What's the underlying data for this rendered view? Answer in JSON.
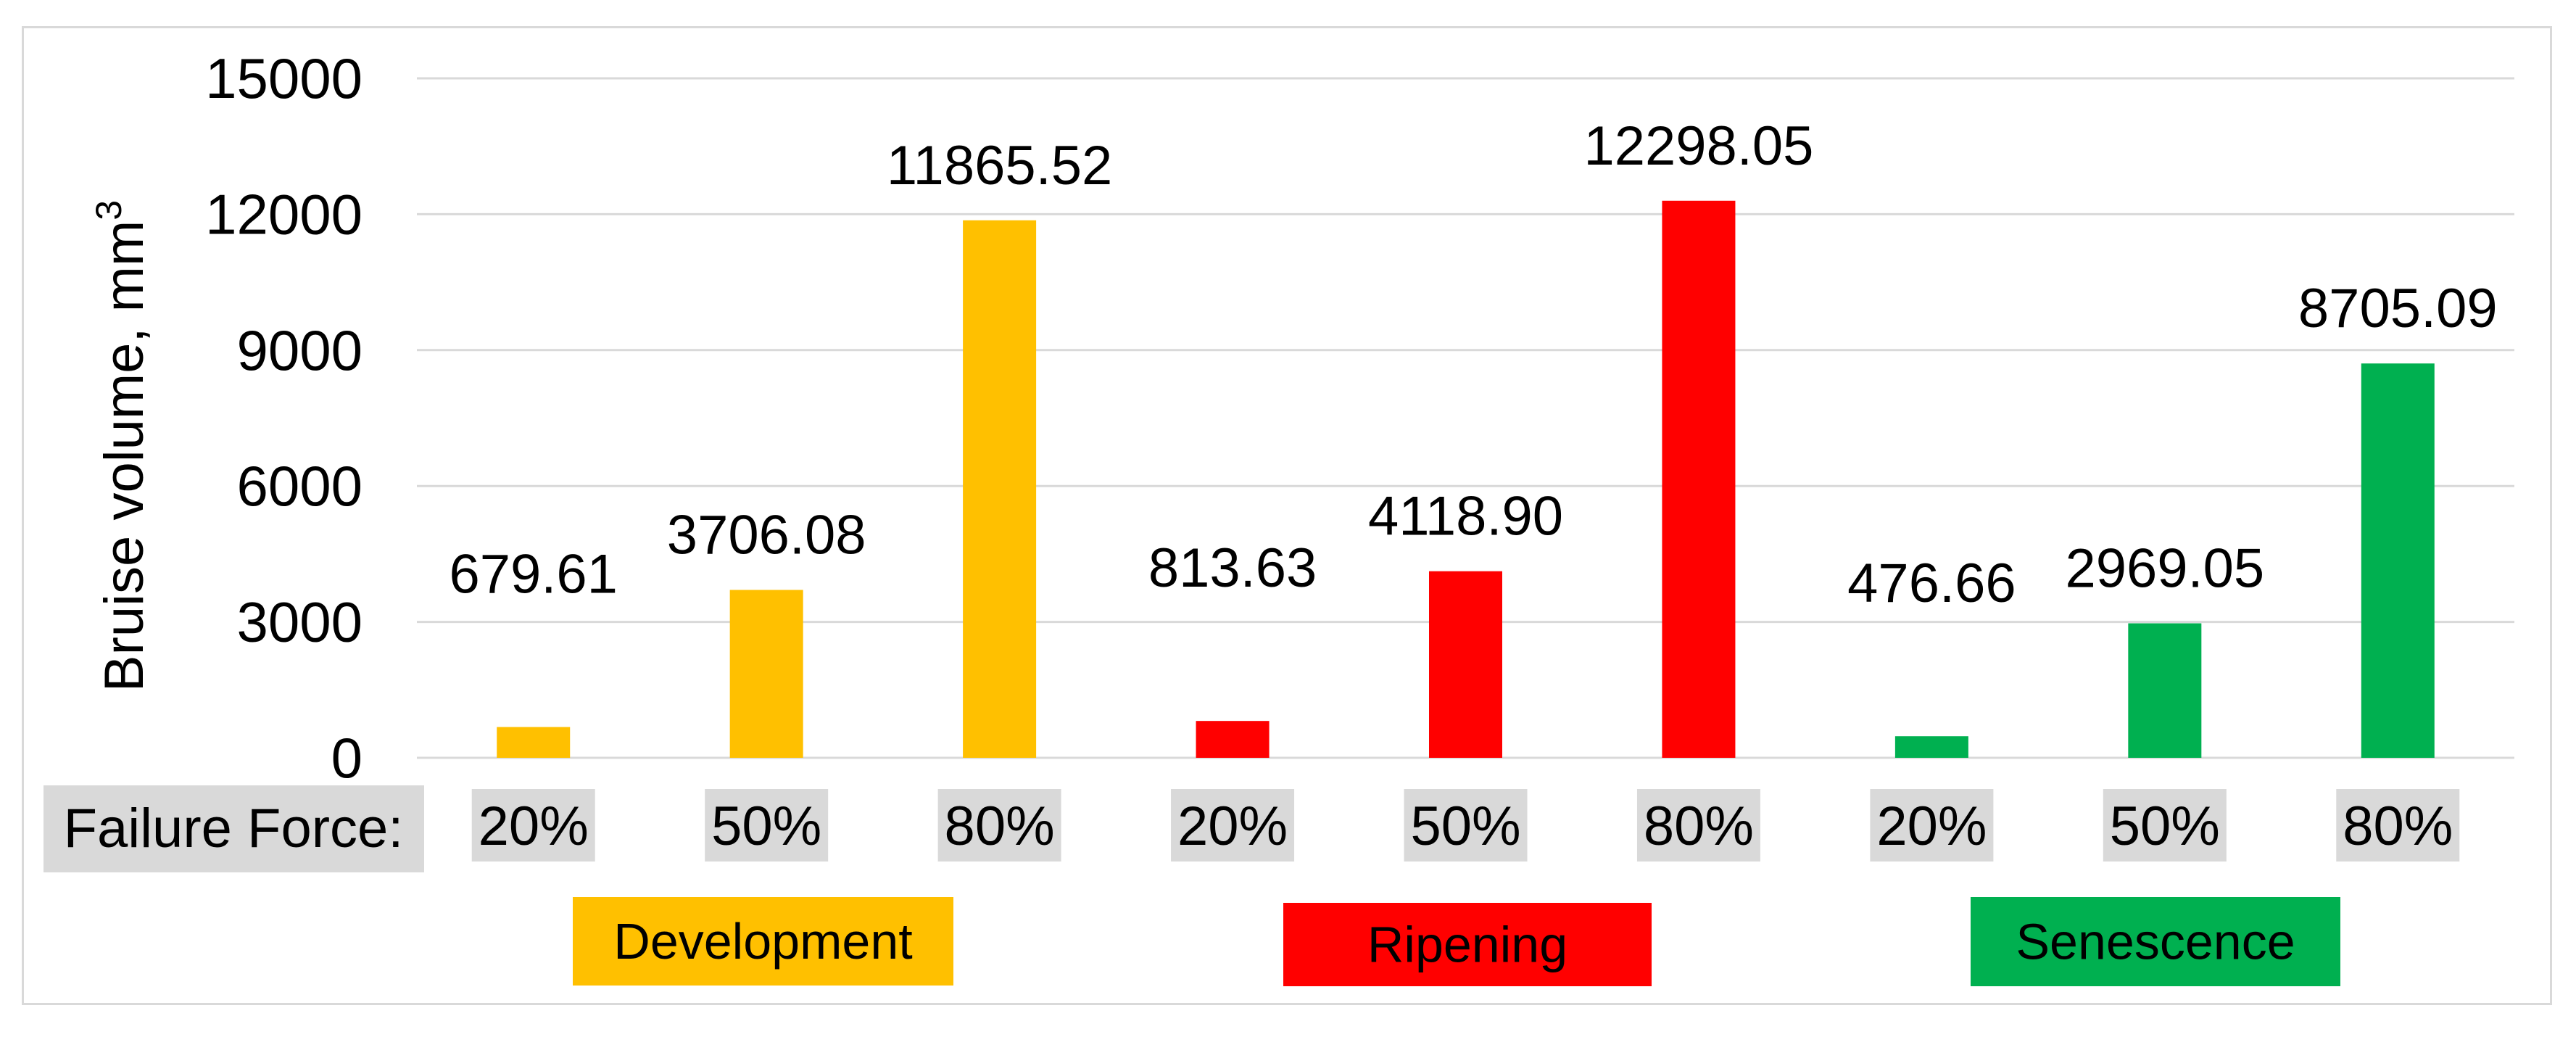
{
  "chart_data": {
    "type": "bar",
    "title": "",
    "ylabel": "Bruise volume, mm",
    "ylabel_superscript": "3",
    "row_label": "Failure Force:",
    "ylim": [
      0,
      15000
    ],
    "yticks": [
      "0",
      "3000",
      "6000",
      "9000",
      "12000",
      "15000"
    ],
    "grid": true,
    "categories": [
      "20%",
      "50%",
      "80%",
      "20%",
      "50%",
      "80%",
      "20%",
      "50%",
      "80%"
    ],
    "values": [
      679.61,
      3706.08,
      11865.52,
      813.63,
      4118.9,
      12298.05,
      476.66,
      2969.05,
      8705.09
    ],
    "value_labels": [
      "679.61",
      "3706.08",
      "11865.52",
      "813.63",
      "4118.90",
      "12298.05",
      "476.66",
      "2969.05",
      "8705.09"
    ],
    "groups": [
      {
        "name": "Development",
        "color": "#FFC000"
      },
      {
        "name": "Ripening",
        "color": "#FF0000"
      },
      {
        "name": "Senescence",
        "color": "#00B050"
      }
    ],
    "label_bg_color": "#d9d9d9"
  }
}
